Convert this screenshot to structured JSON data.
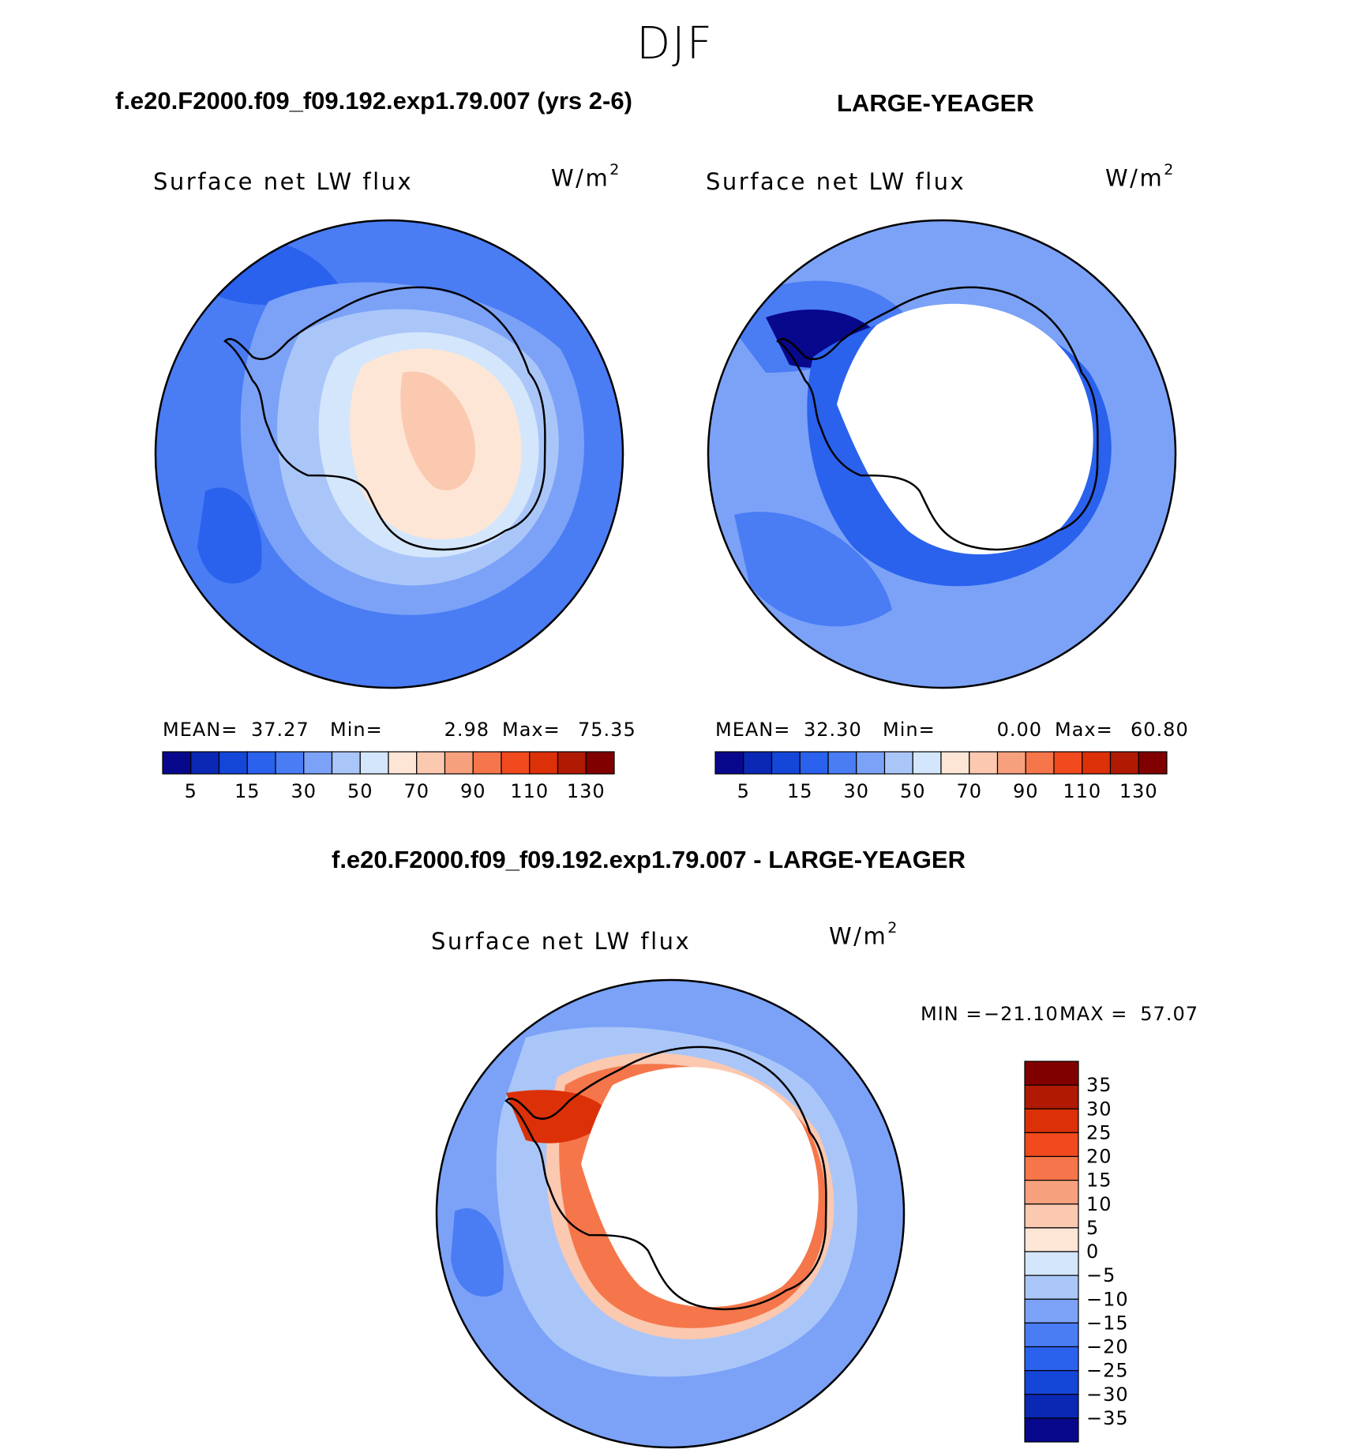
{
  "figure": {
    "season": "DJF",
    "units_base": "W/m",
    "units_exp": "2"
  },
  "panels": [
    {
      "case_title": "f.e20.F2000.f09_f09.192.exp1.79.007 (yrs 2-6)",
      "field_title": "Surface net LW flux",
      "mean_label": "MEAN=",
      "mean_value": "37.27",
      "min_label": "Min=",
      "min_value": "2.98",
      "max_label": "Max=",
      "max_value": "75.35"
    },
    {
      "case_title": "LARGE-YEAGER",
      "field_title": "Surface net LW flux",
      "mean_label": "MEAN=",
      "mean_value": "32.30",
      "min_label": "Min=",
      "min_value": "0.00",
      "max_label": "Max=",
      "max_value": "60.80"
    },
    {
      "case_title": "f.e20.F2000.f09_f09.192.exp1.79.007 - LARGE-YEAGER",
      "field_title": "Surface net LW flux",
      "min_label": "MIN =",
      "min_value": "−21.10",
      "max_label": "MAX =",
      "max_value": "57.07"
    }
  ],
  "chart_data": [
    {
      "type": "heatmap",
      "title": "Surface net LW flux",
      "subtitle": "f.e20.F2000.f09_f09.192.exp1.79.007 (yrs 2-6)",
      "projection": "south-polar-stereographic",
      "units": "W/m2",
      "mean": 37.27,
      "min": 2.98,
      "max": 75.35,
      "colorbar_levels": [
        5,
        10,
        15,
        20,
        30,
        40,
        50,
        60,
        70,
        80,
        90,
        100,
        110,
        120,
        130
      ],
      "colorbar_tick_labels": [
        "5",
        "15",
        "30",
        "50",
        "70",
        "90",
        "110",
        "130"
      ],
      "colors": [
        "#08088c",
        "#0a28b4",
        "#1446d8",
        "#2a62ee",
        "#4a7cf4",
        "#7ba2f7",
        "#aac6f9",
        "#d4e6fb",
        "#fde6d6",
        "#fbc8b0",
        "#f7a07e",
        "#f5764a",
        "#f04a1e",
        "#dc3008",
        "#b01a02",
        "#800000"
      ]
    },
    {
      "type": "heatmap",
      "title": "Surface net LW flux",
      "subtitle": "LARGE-YEAGER",
      "projection": "south-polar-stereographic",
      "units": "W/m2",
      "mean": 32.3,
      "min": 0.0,
      "max": 60.8,
      "colorbar_levels": [
        5,
        10,
        15,
        20,
        30,
        40,
        50,
        60,
        70,
        80,
        90,
        100,
        110,
        120,
        130
      ],
      "colorbar_tick_labels": [
        "5",
        "15",
        "30",
        "50",
        "70",
        "90",
        "110",
        "130"
      ],
      "colors": [
        "#08088c",
        "#0a28b4",
        "#1446d8",
        "#2a62ee",
        "#4a7cf4",
        "#7ba2f7",
        "#aac6f9",
        "#d4e6fb",
        "#fde6d6",
        "#fbc8b0",
        "#f7a07e",
        "#f5764a",
        "#f04a1e",
        "#dc3008",
        "#b01a02",
        "#800000"
      ]
    },
    {
      "type": "heatmap",
      "title": "Surface net LW flux",
      "subtitle": "f.e20.F2000.f09_f09.192.exp1.79.007 - LARGE-YEAGER",
      "projection": "south-polar-stereographic",
      "units": "W/m2",
      "min": -21.1,
      "max": 57.07,
      "colorbar_levels": [
        35,
        30,
        25,
        20,
        15,
        10,
        5,
        0,
        -5,
        -10,
        -15,
        -20,
        -25,
        -30,
        -35
      ],
      "colorbar_tick_labels": [
        "35",
        "30",
        "25",
        "20",
        "15",
        "10",
        "5",
        "0",
        "−5",
        "−10",
        "−15",
        "−20",
        "−25",
        "−30",
        "−35"
      ],
      "colors": [
        "#800000",
        "#b01a02",
        "#dc3008",
        "#f04a1e",
        "#f5764a",
        "#f7a07e",
        "#fbc8b0",
        "#fde6d6",
        "#d4e6fb",
        "#aac6f9",
        "#7ba2f7",
        "#4a7cf4",
        "#2a62ee",
        "#1446d8",
        "#0a28b4",
        "#08088c"
      ]
    }
  ]
}
